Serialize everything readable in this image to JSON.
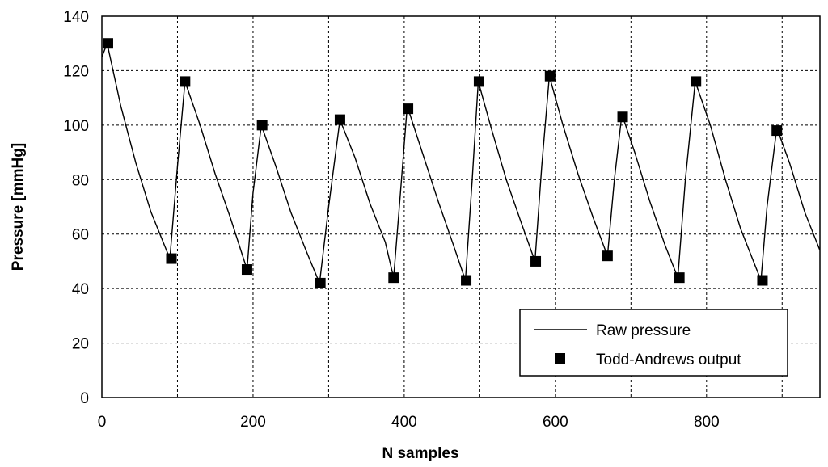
{
  "chart_data": {
    "type": "line",
    "xlabel": "N samples",
    "ylabel": "Pressure [mmHg]",
    "xlim": [
      0,
      950
    ],
    "ylim": [
      0,
      140
    ],
    "x_ticks": [
      0,
      200,
      400,
      600,
      800
    ],
    "y_ticks": [
      0,
      20,
      40,
      60,
      80,
      100,
      120,
      140
    ],
    "grid": true,
    "legend_position": "bottom-right",
    "series": [
      {
        "name": "Raw pressure",
        "style": "line",
        "color": "#000000",
        "x": [
          0,
          7,
          25,
          45,
          65,
          90,
          100,
          110,
          130,
          150,
          170,
          192,
          200,
          211,
          230,
          250,
          270,
          288,
          300,
          315,
          335,
          355,
          375,
          386,
          395,
          404,
          425,
          445,
          465,
          481,
          490,
          498,
          515,
          535,
          555,
          573,
          582,
          592,
          610,
          630,
          650,
          669,
          678,
          688,
          705,
          725,
          745,
          762,
          772,
          785,
          805,
          825,
          845,
          872,
          880,
          893,
          910,
          930,
          950
        ],
        "y": [
          125,
          130,
          107,
          86,
          68,
          51,
          85,
          116,
          100,
          82,
          66,
          47,
          75,
          100,
          85,
          68,
          54,
          42,
          70,
          102,
          88,
          71,
          57,
          44,
          75,
          107,
          89,
          72,
          56,
          43,
          80,
          116,
          99,
          80,
          64,
          50,
          85,
          118,
          100,
          82,
          66,
          52,
          80,
          104,
          90,
          72,
          56,
          44,
          80,
          116,
          100,
          80,
          62,
          43,
          70,
          99,
          86,
          68,
          54
        ]
      },
      {
        "name": "Todd-Andrews output",
        "style": "markers",
        "color": "#000000",
        "x": [
          8,
          92,
          110,
          192,
          212,
          289,
          315,
          386,
          405,
          482,
          499,
          574,
          593,
          669,
          689,
          764,
          786,
          874,
          893
        ],
        "y": [
          130,
          51,
          116,
          47,
          100,
          42,
          102,
          44,
          106,
          43,
          116,
          50,
          118,
          52,
          103,
          44,
          116,
          43,
          98
        ]
      }
    ]
  }
}
